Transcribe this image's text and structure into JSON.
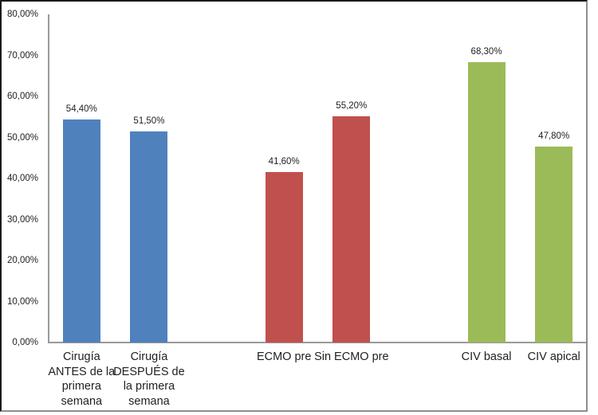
{
  "chart_data": {
    "type": "bar",
    "title": "",
    "xlabel": "",
    "ylabel": "",
    "categories": [
      "Cirugía\nANTES de la\nprimera\nsemana",
      "Cirugía\nDESPUÉS de\nla primera\nsemana",
      "ECMO pre",
      "Sin ECMO pre",
      "CIV basal",
      "CIV apical"
    ],
    "values": [
      54.4,
      51.5,
      41.6,
      55.2,
      68.3,
      47.8
    ],
    "data_labels": [
      "54,40%",
      "51,50%",
      "41,60%",
      "55,20%",
      "68,30%",
      "47,80%"
    ],
    "bar_colors": [
      "#4f81bd",
      "#4f81bd",
      "#c0504d",
      "#c0504d",
      "#9bbb59",
      "#9bbb59"
    ],
    "slot_indices": [
      0,
      1,
      3,
      4,
      6,
      7
    ],
    "slot_count": 8,
    "ylim": [
      0,
      80
    ],
    "ytick_labels": [
      "0,00%",
      "10,00%",
      "20,00%",
      "30,00%",
      "40,00%",
      "50,00%",
      "60,00%",
      "70,00%",
      "80,00%"
    ],
    "grid": false,
    "legend": "none",
    "axis_color": "#9a9a9a",
    "text_color": "#1f1f1f",
    "accent_colors": {
      "blue_series": "#4f81bd",
      "red_series": "#c0504d",
      "green_series": "#9bbb59"
    }
  }
}
